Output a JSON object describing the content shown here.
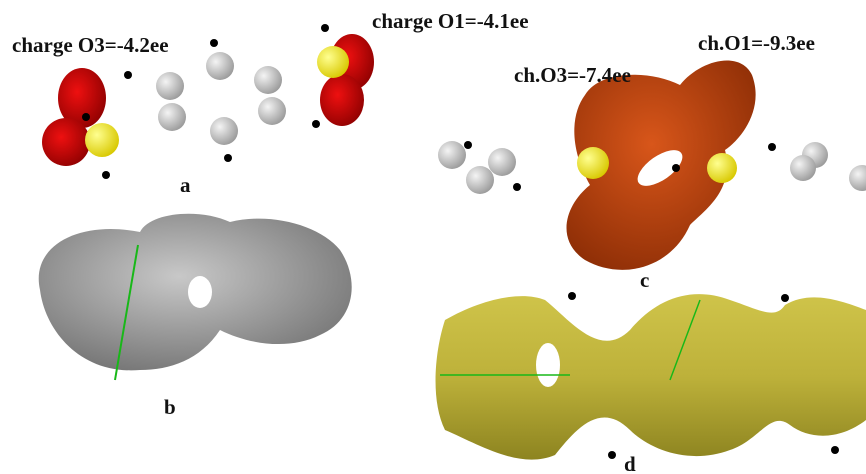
{
  "panels": [
    {
      "label": "a",
      "annotations": [
        "charge O3=-4.2ee",
        "charge O1=-4.1ee"
      ]
    },
    {
      "label": "b"
    },
    {
      "label": "c",
      "annotations": [
        "ch.O1=-9.3ee",
        "ch.O3=-7.4ee"
      ]
    },
    {
      "label": "d"
    }
  ]
}
